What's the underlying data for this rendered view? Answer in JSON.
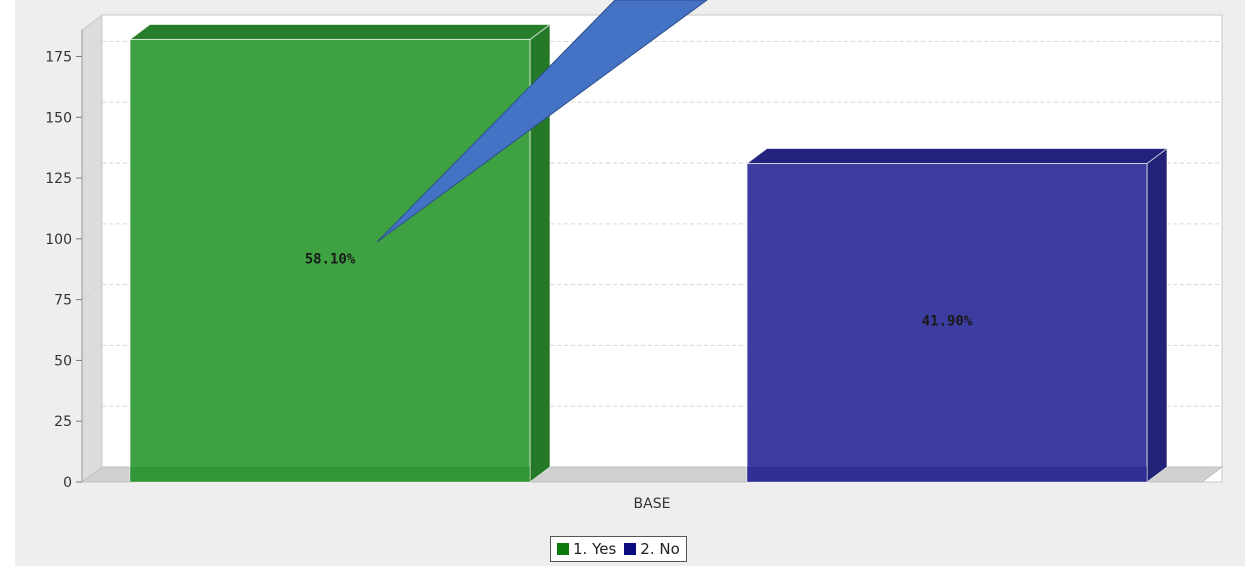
{
  "chart_data": {
    "type": "bar",
    "categories": [
      "BASE"
    ],
    "series": [
      {
        "name": "1. Yes",
        "values": [
          182
        ],
        "label": "58.10%",
        "color": "#2e9a33"
      },
      {
        "name": "2. No",
        "values": [
          131
        ],
        "label": "41.90%",
        "color": "#2b2b99"
      }
    ],
    "ylim": [
      0,
      190
    ],
    "yticks": [
      0,
      25,
      50,
      75,
      100,
      125,
      150,
      175
    ],
    "ytick_labels": [
      "0",
      "25",
      "50",
      "75",
      "100",
      "125",
      "150",
      "175"
    ],
    "grid": true,
    "legend_position": "bottom-center",
    "three_d": true,
    "callout_color": "#4472c4"
  }
}
